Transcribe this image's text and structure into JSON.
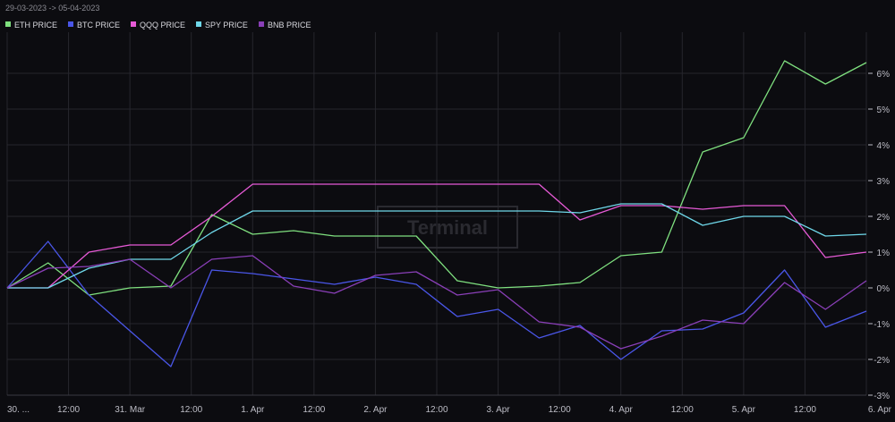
{
  "date_range": "29-03-2023 -> 05-04-2023",
  "watermark": "Terminal",
  "colors": {
    "background": "#0c0c10",
    "eth": "#7fe07f",
    "btc": "#4a56e8",
    "qqq": "#e65ad6",
    "spy": "#6fd8ea",
    "bnb": "#8a3fb8"
  },
  "chart_data": {
    "type": "line",
    "title": "",
    "xlabel": "",
    "ylabel": "",
    "ylim": [
      -3,
      6.5
    ],
    "y_ticks": [
      {
        "value": 6,
        "label": "6%"
      },
      {
        "value": 5,
        "label": "5%"
      },
      {
        "value": 4,
        "label": "4%"
      },
      {
        "value": 3,
        "label": "3%"
      },
      {
        "value": 2,
        "label": "2%"
      },
      {
        "value": 1,
        "label": "1%"
      },
      {
        "value": 0,
        "label": "0%"
      },
      {
        "value": -1,
        "label": "-1%"
      },
      {
        "value": -2,
        "label": "-2%"
      },
      {
        "value": -3,
        "label": "-3%"
      }
    ],
    "x_range_hours": [
      0,
      168
    ],
    "x_ticks": [
      {
        "hour": 0,
        "label": "30. ..."
      },
      {
        "hour": 12,
        "label": "12:00"
      },
      {
        "hour": 24,
        "label": "31. Mar"
      },
      {
        "hour": 36,
        "label": "12:00"
      },
      {
        "hour": 48,
        "label": "1. Apr"
      },
      {
        "hour": 60,
        "label": "12:00"
      },
      {
        "hour": 72,
        "label": "2. Apr"
      },
      {
        "hour": 84,
        "label": "12:00"
      },
      {
        "hour": 96,
        "label": "3. Apr"
      },
      {
        "hour": 108,
        "label": "12:00"
      },
      {
        "hour": 120,
        "label": "4. Apr"
      },
      {
        "hour": 132,
        "label": "12:00"
      },
      {
        "hour": 144,
        "label": "5. Apr"
      },
      {
        "hour": 156,
        "label": "12:00"
      },
      {
        "hour": 168,
        "label": "6. Apr"
      }
    ],
    "grid": true,
    "legend": "top-left",
    "x": [
      0,
      8,
      16,
      24,
      32,
      40,
      48,
      56,
      64,
      72,
      80,
      88,
      96,
      104,
      112,
      120,
      128,
      136,
      144,
      152,
      160,
      168
    ],
    "series": [
      {
        "name": "ETH PRICE",
        "key": "eth",
        "values": [
          0,
          0.7,
          -0.2,
          0,
          0.05,
          2.05,
          1.5,
          1.6,
          1.45,
          1.45,
          1.45,
          0.2,
          0,
          0.05,
          0.15,
          0.9,
          1,
          3.8,
          4.2,
          6.35,
          5.7,
          6.3
        ]
      },
      {
        "name": "BTC PRICE",
        "key": "btc",
        "values": [
          0,
          1.3,
          -0.2,
          -1.2,
          -2.2,
          0.5,
          0.4,
          0.25,
          0.1,
          0.3,
          0.1,
          -0.8,
          -0.6,
          -1.4,
          -1.05,
          -2,
          -1.2,
          -1.15,
          -0.7,
          0.5,
          -1.1,
          -0.65
        ]
      },
      {
        "name": "QQQ PRICE",
        "key": "qqq",
        "values": [
          0,
          0,
          1,
          1.2,
          1.2,
          2,
          2.9,
          2.9,
          2.9,
          2.9,
          2.9,
          2.9,
          2.9,
          2.9,
          1.9,
          2.3,
          2.3,
          2.2,
          2.3,
          2.3,
          0.85,
          1
        ]
      },
      {
        "name": "SPY PRICE",
        "key": "spy",
        "values": [
          0,
          0,
          0.55,
          0.8,
          0.8,
          1.55,
          2.15,
          2.15,
          2.15,
          2.15,
          2.15,
          2.15,
          2.15,
          2.15,
          2.1,
          2.35,
          2.35,
          1.75,
          2,
          2,
          1.45,
          1.5
        ]
      },
      {
        "name": "BNB PRICE",
        "key": "bnb",
        "values": [
          0,
          0.55,
          0.6,
          0.8,
          0,
          0.8,
          0.9,
          0.05,
          -0.15,
          0.35,
          0.45,
          -0.2,
          -0.05,
          -0.95,
          -1.1,
          -1.7,
          -1.35,
          -0.9,
          -1,
          0.15,
          -0.6,
          0.2
        ]
      }
    ]
  }
}
